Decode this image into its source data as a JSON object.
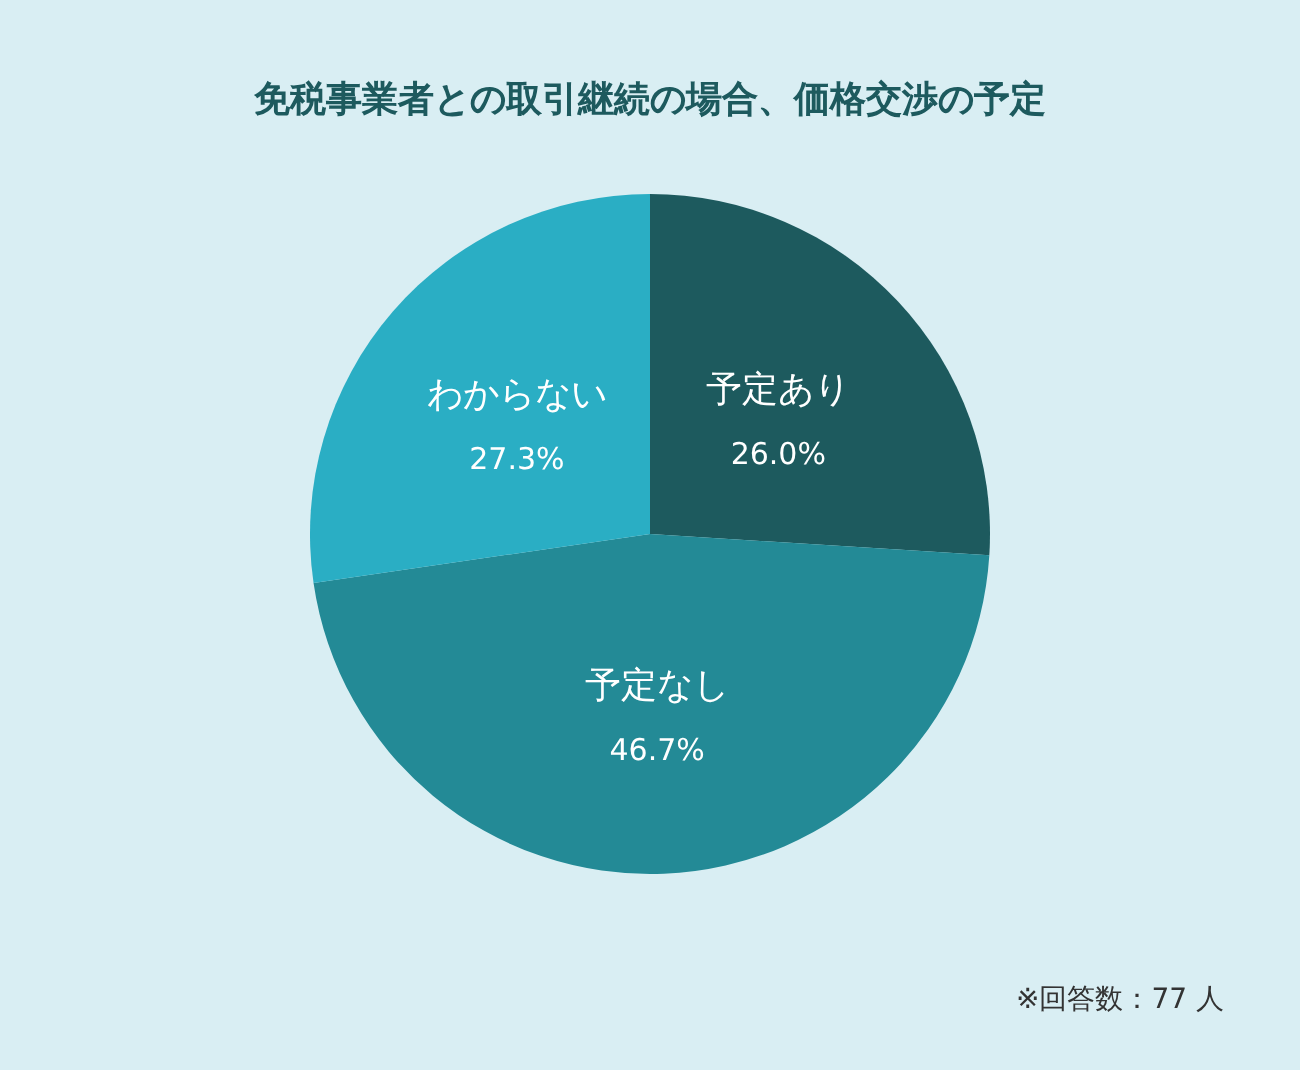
{
  "chart_data": {
    "type": "pie",
    "title": "免税事業者との取引継続の場合、価格交渉の予定",
    "categories": [
      "予定あり",
      "予定なし",
      "わからない"
    ],
    "values": [
      26.0,
      46.7,
      27.3
    ],
    "value_labels": [
      "26.0%",
      "46.7%",
      "27.3%"
    ],
    "colors": [
      "#1d5a5e",
      "#238a96",
      "#2aaec4"
    ],
    "legend": false,
    "annotations": [
      "※回答数：77 人"
    ]
  }
}
